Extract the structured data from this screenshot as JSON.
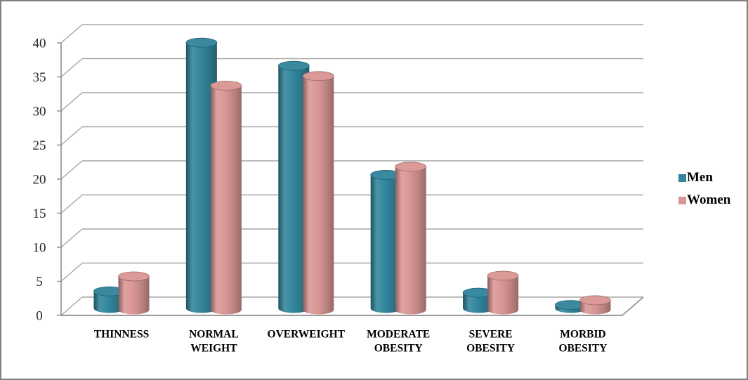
{
  "chart_data": {
    "type": "bar",
    "style": "3d-cylinder",
    "title": "",
    "xlabel": "",
    "ylabel": "",
    "categories": [
      "THINNESS",
      "NORMAL WEIGHT",
      "OVERWEIGHT",
      "MODERATE OBESITY",
      "SEVERE OBESITY",
      "MORBID OBESITY"
    ],
    "series": [
      {
        "name": "Men",
        "color": "#31859C",
        "values": [
          2.5,
          39.0,
          35.6,
          19.6,
          2.3,
          0.5
        ]
      },
      {
        "name": "Women",
        "color": "#D99694",
        "values": [
          4.9,
          32.9,
          34.3,
          21.0,
          5.0,
          1.4
        ]
      }
    ],
    "ylim": [
      0,
      40
    ],
    "ytick_step": 5,
    "ytick_labels": [
      "0",
      "5",
      "10",
      "15",
      "20",
      "25",
      "30",
      "35",
      "40"
    ],
    "grid": true,
    "legend_position": "right"
  },
  "colors": {
    "grid_line": "#A6A6A6",
    "axis_line": "#8C8C8C",
    "frame_border": "#808080",
    "background": "#FFFFFF",
    "tick_label": "#262626",
    "category_label": "#000000"
  }
}
